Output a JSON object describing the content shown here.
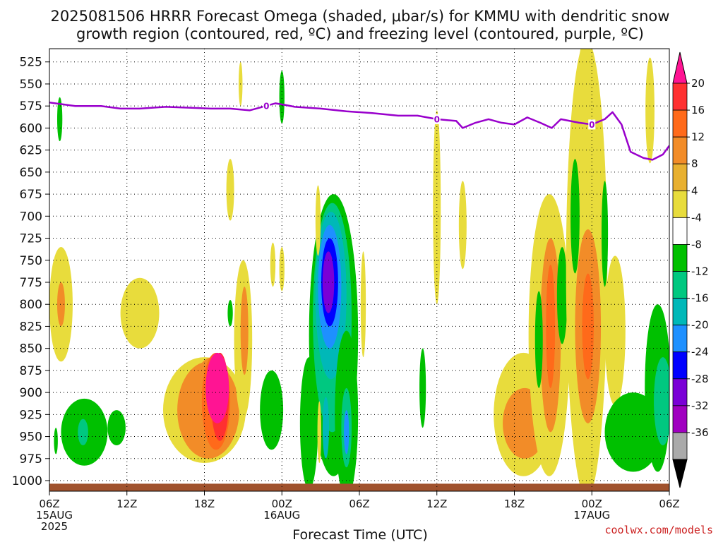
{
  "title": {
    "line1": "2025081506 HRRR Forecast Omega (shaded, μbar/s) for KMMU with dendritic snow",
    "line2": "growth region (contoured, red, ºC) and freezing level (contoured, purple, ºC)"
  },
  "credit": "coolwx.com/models",
  "colors": {
    "freezing_line": "#9900cc",
    "ground": "#a0522d",
    "grid": "#000000"
  },
  "chart_data": {
    "type": "heatmap",
    "x_label": "Forecast Time (UTC)",
    "x_range_hours": [
      0,
      48
    ],
    "x_ticks": [
      {
        "h": 0,
        "lines": [
          "06Z",
          "15AUG",
          "2025"
        ]
      },
      {
        "h": 6,
        "lines": [
          "12Z"
        ]
      },
      {
        "h": 12,
        "lines": [
          "18Z"
        ]
      },
      {
        "h": 18,
        "lines": [
          "00Z",
          "16AUG"
        ]
      },
      {
        "h": 24,
        "lines": [
          "06Z"
        ]
      },
      {
        "h": 30,
        "lines": [
          "12Z"
        ]
      },
      {
        "h": 36,
        "lines": [
          "18Z"
        ]
      },
      {
        "h": 42,
        "lines": [
          "00Z",
          "17AUG"
        ]
      },
      {
        "h": 48,
        "lines": [
          "06Z"
        ]
      }
    ],
    "y_label": "",
    "y_ticks_hpa": [
      525,
      550,
      575,
      600,
      625,
      650,
      675,
      700,
      725,
      750,
      775,
      800,
      825,
      850,
      875,
      900,
      925,
      950,
      975,
      1000
    ],
    "y_range_hpa": [
      510,
      1012
    ],
    "grid": true,
    "colorbar": {
      "ticks": [
        "20",
        "16",
        "12",
        "8",
        "4",
        "-4",
        "-8",
        "-12",
        "-16",
        "-20",
        "-24",
        "-28",
        "-32",
        "-36"
      ],
      "bins": [
        {
          "c": "#ff1493"
        },
        {
          "c": "#ff3030"
        },
        {
          "c": "#ff6a1a"
        },
        {
          "c": "#f28c28"
        },
        {
          "c": "#e8b030"
        },
        {
          "c": "#e8dc3c"
        },
        {
          "c": "#ffffff"
        },
        {
          "c": "#00c000"
        },
        {
          "c": "#00c880"
        },
        {
          "c": "#00b8b8"
        },
        {
          "c": "#1e90ff"
        },
        {
          "c": "#0000ff"
        },
        {
          "c": "#7a00d6"
        },
        {
          "c": "#a000c0"
        },
        {
          "c": "#aaaaaa"
        }
      ],
      "bottom_arrow_color": "#000000",
      "top_arrow_color": "#ff1493"
    },
    "freezing_level": {
      "label": "0",
      "points": [
        [
          0,
          571
        ],
        [
          2,
          575
        ],
        [
          4,
          575
        ],
        [
          5.5,
          578
        ],
        [
          7,
          578
        ],
        [
          9,
          576
        ],
        [
          11,
          577
        ],
        [
          12.5,
          578
        ],
        [
          14,
          578
        ],
        [
          15.5,
          580
        ],
        [
          16.5,
          576
        ],
        [
          17.5,
          572
        ],
        [
          18.3,
          574
        ],
        [
          19,
          576
        ],
        [
          21,
          578
        ],
        [
          23,
          581
        ],
        [
          25,
          583
        ],
        [
          27,
          586
        ],
        [
          28.5,
          586
        ],
        [
          30,
          590
        ],
        [
          31.5,
          592
        ],
        [
          32,
          600
        ],
        [
          33,
          594
        ],
        [
          34,
          590
        ],
        [
          35,
          594
        ],
        [
          36,
          596
        ],
        [
          37,
          588
        ],
        [
          38,
          594
        ],
        [
          38.9,
          600
        ],
        [
          39.6,
          590
        ],
        [
          41,
          594
        ],
        [
          42,
          596
        ],
        [
          43,
          590
        ],
        [
          43.6,
          582
        ],
        [
          44.3,
          596
        ],
        [
          45,
          627
        ],
        [
          46,
          634
        ],
        [
          46.7,
          636
        ],
        [
          47.5,
          630
        ],
        [
          48,
          620
        ]
      ],
      "label_positions": [
        [
          16.8,
          575
        ],
        [
          30,
          590
        ],
        [
          42,
          596
        ]
      ]
    },
    "omega_features": [
      {
        "kind": "ellipse",
        "h": 0.9,
        "p": 800,
        "rh": 0.9,
        "rp": 65,
        "v": 5
      },
      {
        "kind": "ellipse",
        "h": 0.9,
        "p": 800,
        "rh": 0.3,
        "rp": 25,
        "v": 9
      },
      {
        "kind": "ellipse",
        "h": 0.8,
        "p": 590,
        "rh": 0.2,
        "rp": 25,
        "v": -5
      },
      {
        "kind": "ellipse",
        "h": 2.7,
        "p": 945,
        "rh": 1.8,
        "rp": 38,
        "v": -6
      },
      {
        "kind": "ellipse",
        "h": 2.6,
        "p": 945,
        "rh": 0.4,
        "rp": 15,
        "v": -10
      },
      {
        "kind": "ellipse",
        "h": 5.2,
        "p": 940,
        "rh": 0.7,
        "rp": 20,
        "v": -5
      },
      {
        "kind": "ellipse",
        "h": 0.5,
        "p": 955,
        "rh": 0.15,
        "rp": 15,
        "v": -5
      },
      {
        "kind": "ellipse",
        "h": 7.0,
        "p": 810,
        "rh": 1.5,
        "rp": 40,
        "v": 5
      },
      {
        "kind": "ellipse",
        "h": 12.0,
        "p": 920,
        "rh": 3.2,
        "rp": 60,
        "v": 5
      },
      {
        "kind": "ellipse",
        "h": 12.3,
        "p": 920,
        "rh": 2.4,
        "rp": 55,
        "v": 8
      },
      {
        "kind": "ellipse",
        "h": 12.6,
        "p": 915,
        "rh": 1.7,
        "rp": 55,
        "v": 11
      },
      {
        "kind": "ellipse",
        "h": 12.9,
        "p": 910,
        "rh": 1.1,
        "rp": 55,
        "v": 14
      },
      {
        "kind": "ellipse",
        "h": 13.2,
        "p": 905,
        "rh": 0.7,
        "rp": 50,
        "v": 18
      },
      {
        "kind": "ellipse",
        "h": 13.0,
        "p": 895,
        "rh": 0.9,
        "rp": 40,
        "v": 22
      },
      {
        "kind": "ellipse",
        "h": 14.0,
        "p": 810,
        "rh": 0.2,
        "rp": 15,
        "v": -5
      },
      {
        "kind": "ellipse",
        "h": 15.0,
        "p": 840,
        "rh": 0.7,
        "rp": 90,
        "v": 5
      },
      {
        "kind": "ellipse",
        "h": 15.1,
        "p": 830,
        "rh": 0.3,
        "rp": 50,
        "v": 9
      },
      {
        "kind": "ellipse",
        "h": 14.0,
        "p": 670,
        "rh": 0.3,
        "rp": 35,
        "v": 5
      },
      {
        "kind": "ellipse",
        "h": 14.8,
        "p": 550,
        "rh": 0.15,
        "rp": 25,
        "v": 5
      },
      {
        "kind": "ellipse",
        "h": 17.3,
        "p": 755,
        "rh": 0.2,
        "rp": 25,
        "v": 5
      },
      {
        "kind": "ellipse",
        "h": 17.2,
        "p": 920,
        "rh": 0.9,
        "rp": 45,
        "v": -6
      },
      {
        "kind": "ellipse",
        "h": 18.0,
        "p": 565,
        "rh": 0.2,
        "rp": 30,
        "v": -6
      },
      {
        "kind": "ellipse",
        "h": 18.0,
        "p": 760,
        "rh": 0.2,
        "rp": 25,
        "v": 5
      },
      {
        "kind": "ellipse",
        "h": 22.0,
        "p": 835,
        "rh": 1.9,
        "rp": 160,
        "v": -6
      },
      {
        "kind": "ellipse",
        "h": 21.9,
        "p": 815,
        "rh": 1.5,
        "rp": 130,
        "v": -9
      },
      {
        "kind": "ellipse",
        "h": 21.8,
        "p": 790,
        "rh": 1.2,
        "rp": 95,
        "v": -13
      },
      {
        "kind": "ellipse",
        "h": 21.7,
        "p": 780,
        "rh": 0.9,
        "rp": 70,
        "v": -17
      },
      {
        "kind": "ellipse",
        "h": 21.7,
        "p": 775,
        "rh": 0.65,
        "rp": 50,
        "v": -22
      },
      {
        "kind": "ellipse",
        "h": 21.6,
        "p": 775,
        "rh": 0.45,
        "rp": 35,
        "v": -26
      },
      {
        "kind": "ellipse",
        "h": 20.1,
        "p": 935,
        "rh": 0.7,
        "rp": 75,
        "v": -6
      },
      {
        "kind": "ellipse",
        "h": 23.0,
        "p": 925,
        "rh": 0.9,
        "rp": 95,
        "v": -6
      },
      {
        "kind": "ellipse",
        "h": 23.0,
        "p": 940,
        "rh": 0.4,
        "rp": 45,
        "v": -11
      },
      {
        "kind": "ellipse",
        "h": 23.0,
        "p": 945,
        "rh": 0.2,
        "rp": 25,
        "v": -18
      },
      {
        "kind": "ellipse",
        "h": 21.4,
        "p": 940,
        "rh": 0.25,
        "rp": 35,
        "v": -13
      },
      {
        "kind": "ellipse",
        "h": 20.8,
        "p": 705,
        "rh": 0.2,
        "rp": 40,
        "v": 5
      },
      {
        "kind": "ellipse",
        "h": 20.9,
        "p": 945,
        "rh": 0.15,
        "rp": 35,
        "v": 5
      },
      {
        "kind": "ellipse",
        "h": 24.3,
        "p": 800,
        "rh": 0.2,
        "rp": 60,
        "v": 5
      },
      {
        "kind": "ellipse",
        "h": 30.0,
        "p": 690,
        "rh": 0.3,
        "rp": 110,
        "v": 5
      },
      {
        "kind": "ellipse",
        "h": 32.0,
        "p": 710,
        "rh": 0.3,
        "rp": 50,
        "v": 5
      },
      {
        "kind": "ellipse",
        "h": 28.9,
        "p": 895,
        "rh": 0.25,
        "rp": 45,
        "v": -6
      },
      {
        "kind": "ellipse",
        "h": 36.7,
        "p": 925,
        "rh": 2.3,
        "rp": 70,
        "v": 5
      },
      {
        "kind": "ellipse",
        "h": 36.8,
        "p": 935,
        "rh": 1.7,
        "rp": 40,
        "v": 9
      },
      {
        "kind": "ellipse",
        "h": 38.7,
        "p": 835,
        "rh": 1.6,
        "rp": 160,
        "v": 5
      },
      {
        "kind": "ellipse",
        "h": 38.8,
        "p": 835,
        "rh": 0.8,
        "rp": 110,
        "v": 9
      },
      {
        "kind": "ellipse",
        "h": 38.8,
        "p": 825,
        "rh": 0.35,
        "rp": 70,
        "v": 12
      },
      {
        "kind": "ellipse",
        "h": 37.9,
        "p": 840,
        "rh": 0.3,
        "rp": 55,
        "v": -6
      },
      {
        "kind": "ellipse",
        "h": 39.7,
        "p": 790,
        "rh": 0.4,
        "rp": 55,
        "v": -6
      },
      {
        "kind": "ellipse",
        "h": 41.6,
        "p": 760,
        "rh": 1.6,
        "rp": 260,
        "v": 5
      },
      {
        "kind": "ellipse",
        "h": 41.7,
        "p": 825,
        "rh": 1.0,
        "rp": 110,
        "v": 9
      },
      {
        "kind": "ellipse",
        "h": 41.7,
        "p": 825,
        "rh": 0.45,
        "rp": 60,
        "v": 12
      },
      {
        "kind": "ellipse",
        "h": 41.4,
        "p": 560,
        "rh": 0.5,
        "rp": 60,
        "v": 5
      },
      {
        "kind": "ellipse",
        "h": 40.7,
        "p": 700,
        "rh": 0.35,
        "rp": 65,
        "v": -6
      },
      {
        "kind": "ellipse",
        "h": 43.0,
        "p": 720,
        "rh": 0.25,
        "rp": 60,
        "v": -6
      },
      {
        "kind": "ellipse",
        "h": 43.8,
        "p": 830,
        "rh": 0.8,
        "rp": 85,
        "v": 5
      },
      {
        "kind": "ellipse",
        "h": 45.2,
        "p": 945,
        "rh": 2.2,
        "rp": 45,
        "v": -6
      },
      {
        "kind": "ellipse",
        "h": 47.1,
        "p": 895,
        "rh": 1.0,
        "rp": 95,
        "v": -6
      },
      {
        "kind": "ellipse",
        "h": 47.5,
        "p": 910,
        "rh": 0.7,
        "rp": 50,
        "v": -10
      },
      {
        "kind": "ellipse",
        "h": 46.5,
        "p": 580,
        "rh": 0.35,
        "rp": 60,
        "v": 5
      }
    ]
  }
}
